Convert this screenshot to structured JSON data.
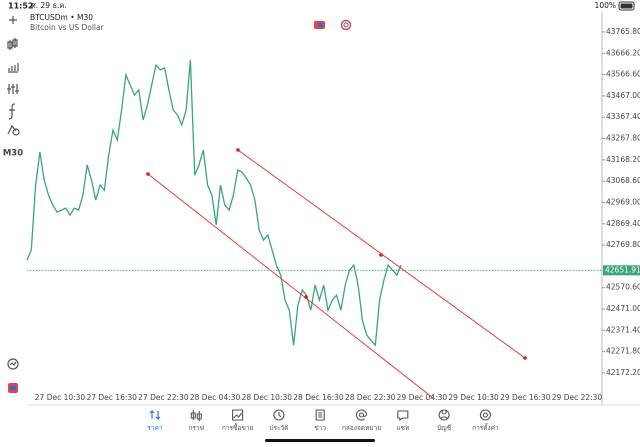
{
  "status_bar": {
    "time": "11:52",
    "date": "ศ. 29 ธ.ค.",
    "battery": "100%"
  },
  "toolbar": {
    "timeframe": "M30"
  },
  "chart_data": {
    "type": "line",
    "title": "BTCUSDm • M30",
    "subtitle": "Bitcoin vs US Dollar",
    "series": [
      {
        "name": "BTCUSDm",
        "color": "#3aa57a",
        "values": [
          42699.6,
          42746.4,
          43050.3,
          43204.6,
          43073.7,
          43003.6,
          42956.8,
          42924.1,
          42933.4,
          42942.8,
          42910.1,
          42942.8,
          42933.4,
          43003.6,
          43143.9,
          43073.7,
          42980.2,
          43050.3,
          43027.0,
          43190.6,
          43307.5,
          43260.8,
          43401.0,
          43564.7,
          43517.9,
          43471.2,
          43494.6,
          43354.3,
          43424.4,
          43517.9,
          43611.5,
          43588.1,
          43597.4,
          43494.6,
          43401.0,
          43377.7,
          43330.9,
          43401.0,
          43634.8,
          43097.1,
          43143.9,
          43214.0,
          43050.3,
          43003.6,
          42863.3,
          43050.3,
          42956.8,
          42933.4,
          43003.6,
          43120.5,
          43111.1,
          43083.1,
          43050.3,
          42980.2,
          42839.9,
          42793.2,
          42816.5,
          42746.4,
          42676.3,
          42629.5,
          42512.6,
          42465.8,
          42302.2,
          42489.2,
          42559.4,
          42536.0,
          42465.8,
          42582.7,
          42512.6,
          42582.7,
          42465.8,
          42512.6,
          42536.0,
          42465.8,
          42582.7,
          42652.9,
          42676.3,
          42582.7,
          42419.1,
          42348.9,
          42325.6,
          42302.2,
          42512.6,
          42606.1,
          42676.3,
          42652.9,
          42629.5,
          42676.3
        ]
      }
    ],
    "last_price": 42651.91,
    "x_labels": [
      "27 Dec 10:30",
      "27 Dec 16:30",
      "27 Dec 22:30",
      "28 Dec 04:30",
      "28 Dec 10:30",
      "28 Dec 16:30",
      "28 Dec 22:30",
      "29 Dec 04:30",
      "29 Dec 10:30",
      "29 Dec 16:30",
      "29 Dec 22:30"
    ],
    "ylim": [
      43859,
      42046
    ],
    "yticks": [
      {
        "value": 43765.8,
        "label": "43765.80"
      },
      {
        "value": 43666.2,
        "label": "43666.20"
      },
      {
        "value": 43566.6,
        "label": "43566.60"
      },
      {
        "value": 43467,
        "label": "43467.00"
      },
      {
        "value": 43367.4,
        "label": "43367.40"
      },
      {
        "value": 43267.8,
        "label": "43267.80"
      },
      {
        "value": 43168.2,
        "label": "43168.20"
      },
      {
        "value": 43068.6,
        "label": "43068.60"
      },
      {
        "value": 42969,
        "label": "42969.00"
      },
      {
        "value": 42869.4,
        "label": "42869.40"
      },
      {
        "value": 42769.8,
        "label": "42769.80"
      },
      {
        "value": 42570.6,
        "label": "42570.60"
      },
      {
        "value": 42471,
        "label": "42471.00"
      },
      {
        "value": 42371.4,
        "label": "42371.40"
      },
      {
        "value": 42271.8,
        "label": "42271.80"
      },
      {
        "value": 42172.2,
        "label": "42172.20"
      }
    ]
  },
  "tabs": [
    {
      "label": "ราคา"
    },
    {
      "label": "กราฟ"
    },
    {
      "label": "การซื้อขาย"
    },
    {
      "label": "ประวัติ"
    },
    {
      "label": "ข่าว"
    },
    {
      "label": "กล่องจดหมาย"
    },
    {
      "label": "แชท"
    },
    {
      "label": "บัญชี"
    },
    {
      "label": "การตั้งค่า"
    }
  ]
}
